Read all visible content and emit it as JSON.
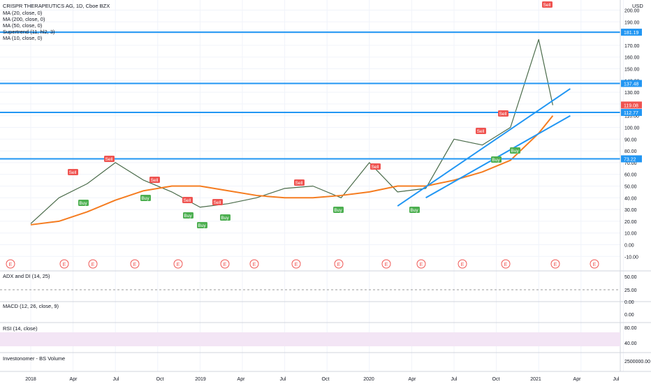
{
  "header": {
    "symbol_line": "CRISPR THERAPEUTICS AG, 1D, Cboe BZX",
    "indicators": [
      "MA (20, close, 0)",
      "MA (200, close, 0)",
      "MA (50, close, 0)",
      "Supertrend (11, hl2, 3)",
      "MA (10, close, 0)"
    ],
    "currency": "USD"
  },
  "colors": {
    "accent": "#2196f3",
    "sell": "#ef5350",
    "buy": "#4caf50",
    "ma200": "#f57c20",
    "rsi_band": "#f3e5f5",
    "rsi_line": "#9c27b0"
  },
  "price_axis": {
    "ticks": [
      "200.00",
      "190.00",
      "180.00",
      "170.00",
      "160.00",
      "150.00",
      "140.00",
      "130.00",
      "120.00",
      "110.00",
      "100.00",
      "90.00",
      "80.00",
      "70.00",
      "60.00",
      "50.00",
      "40.00",
      "30.00",
      "20.00",
      "10.00",
      "0.00",
      "-10.00"
    ],
    "levels": [
      {
        "label": "181.19",
        "value": 181.19
      },
      {
        "label": "137.48",
        "value": 137.48
      },
      {
        "label": "119.08",
        "value": 119.08
      },
      {
        "label": "112.77",
        "value": 112.77
      },
      {
        "label": "73.22",
        "value": 73.22
      }
    ]
  },
  "panes": {
    "adx": {
      "title": "ADX and DI (14, 25)",
      "ticks": [
        "50.00",
        "25.00",
        "0.00"
      ]
    },
    "macd": {
      "title": "MACD (12, 26, close, 9)",
      "ticks": [
        "0.00"
      ]
    },
    "rsi": {
      "title": "RSI (14, close)",
      "ticks": [
        "80.00",
        "40.00"
      ]
    },
    "volume": {
      "title": "Investonomer - BS Volume",
      "ticks": [
        "2500000.00"
      ]
    }
  },
  "time_axis": [
    "2018",
    "Apr",
    "Jul",
    "Oct",
    "2019",
    "Apr",
    "Jul",
    "Oct",
    "2020",
    "Apr",
    "Jul",
    "Oct",
    "2021",
    "Apr",
    "Jul"
  ],
  "earnings_label": "E",
  "signals": {
    "sell": "Sell",
    "buy": "Buy"
  },
  "chart_data": {
    "type": "line",
    "title": "CRISPR THERAPEUTICS AG, 1D, Cboe BZX",
    "ylim": [
      -10,
      205
    ],
    "x": [
      "2018-01",
      "2018-03",
      "2018-05",
      "2018-07",
      "2018-09",
      "2018-11",
      "2019-01",
      "2019-03",
      "2019-05",
      "2019-07",
      "2019-09",
      "2019-11",
      "2020-01",
      "2020-03",
      "2020-05",
      "2020-07",
      "2020-09",
      "2020-11",
      "2021-01",
      "2021-02"
    ],
    "series": [
      {
        "values": [
          18,
          40,
          52,
          70,
          55,
          45,
          32,
          35,
          40,
          48,
          50,
          40,
          70,
          45,
          48,
          90,
          85,
          100,
          175,
          119
        ]
      },
      {
        "values": [
          17,
          20,
          28,
          38,
          46,
          50,
          50,
          46,
          42,
          40,
          40,
          42,
          45,
          50,
          50,
          55,
          62,
          72,
          95,
          110
        ]
      }
    ],
    "horizontal_levels": [
      181.19,
      137.48,
      112.77,
      73.22
    ],
    "trendlines": [
      {
        "from": [
          "2020-03",
          33
        ],
        "to": [
          "2021-02",
          133
        ]
      },
      {
        "from": [
          "2020-05",
          40
        ],
        "to": [
          "2021-02",
          110
        ]
      }
    ]
  }
}
